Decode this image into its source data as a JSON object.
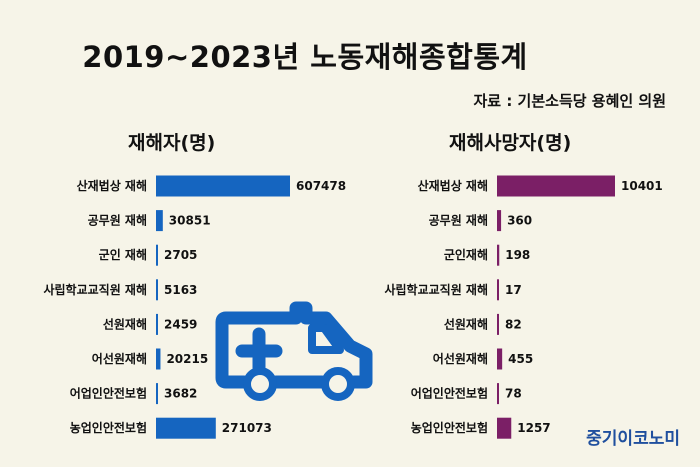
{
  "title": "2019~2023년 노동재해종합통계",
  "source": "자료 : 기본소득당 용혜인 의원",
  "brand": "중기이코노미",
  "icon": "ambulance-icon",
  "colors": {
    "injury": "#1565c0",
    "death": "#7b1f66",
    "background": "#f6f4e8"
  },
  "chart_data": [
    {
      "type": "bar",
      "orientation": "horizontal",
      "title": "재해자(명)",
      "categories": [
        "산재법상 재해",
        "공무원 재해",
        "군인 재해",
        "사립학교교직원 재해",
        "선원재해",
        "어선원재해",
        "어업인안전보험",
        "농업인안전보험"
      ],
      "values": [
        607478,
        30851,
        2705,
        5163,
        2459,
        20215,
        3682,
        271073
      ]
    },
    {
      "type": "bar",
      "orientation": "horizontal",
      "title": "재해사망자(명)",
      "categories": [
        "산재법상 재해",
        "공무원 재해",
        "군인재해",
        "사립학교교직원 재해",
        "선원재해",
        "어선원재해",
        "어업인안전보험",
        "농업인안전보험"
      ],
      "values": [
        10401,
        360,
        198,
        17,
        82,
        455,
        78,
        1257
      ]
    }
  ]
}
